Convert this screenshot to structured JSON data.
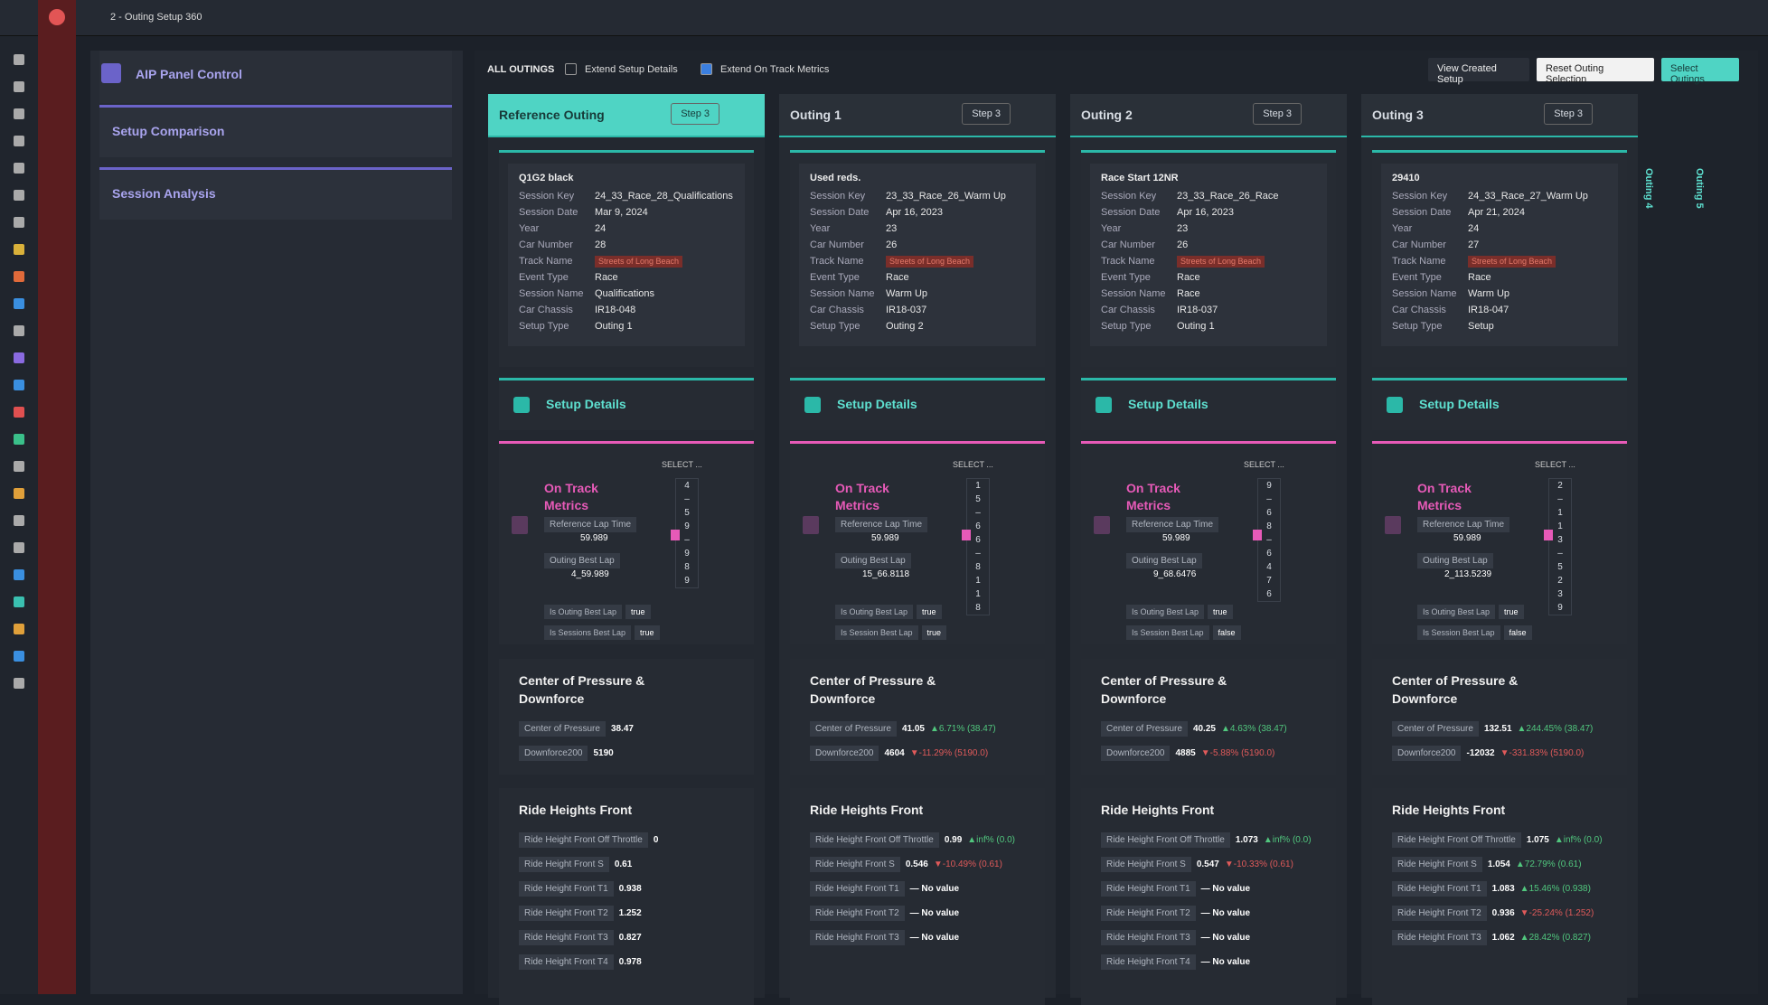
{
  "app": {
    "title": "2 - Outing Setup 360"
  },
  "left_panel": {
    "items": [
      "AIP Panel Control",
      "Setup Comparison",
      "Session Analysis"
    ]
  },
  "toolbar": {
    "label": "ALL OUTINGS",
    "checkboxes": [
      {
        "label": "Extend Setup Details",
        "checked": false
      },
      {
        "label": "Extend On Track Metrics",
        "checked": true
      }
    ],
    "buttons": [
      "View Created Setup",
      "Reset Outing Selection",
      "Select Outings"
    ]
  },
  "collapsed": [
    "Outing 4",
    "Outing 5"
  ],
  "outings": [
    {
      "title": "Reference Outing",
      "step": "Step 3",
      "info_title": "Q1G2 black",
      "fields": [
        {
          "label": "Session Key",
          "value": "24_33_Race_28_Qualifications"
        },
        {
          "label": "Session Date",
          "value": "Mar 9, 2024"
        },
        {
          "label": "Year",
          "value": "24"
        },
        {
          "label": "Car Number",
          "value": "28"
        },
        {
          "label": "Track Name",
          "value": "Streets of Long Beach"
        },
        {
          "label": "Event Type",
          "value": "Race"
        },
        {
          "label": "Session Name",
          "value": "Qualifications"
        },
        {
          "label": "Car Chassis",
          "value": "IR18-048"
        },
        {
          "label": "Setup Type",
          "value": "Outing 1"
        }
      ],
      "setup_title": "Setup Details",
      "metrics": {
        "title": "On Track Metrics",
        "select_label": "SELECT ...",
        "ref_label": "Reference Lap Time",
        "ref_value": "59.989",
        "best_label": "Outing Best Lap",
        "best_value": "4_59.989",
        "digits": [
          "4",
          "–",
          "5",
          "9",
          "–",
          "9",
          "8",
          "9"
        ],
        "flags": [
          {
            "label": "Is Outing Best Lap",
            "value": "true"
          },
          {
            "label": "Is Sessions Best Lap",
            "value": "true"
          }
        ]
      },
      "cop": {
        "title": "Center of Pressure & Downforce",
        "rows": [
          {
            "label": "Center of Pressure",
            "value": "38.47"
          },
          {
            "label": "Downforce200",
            "value": "5190"
          }
        ]
      },
      "ride": {
        "title": "Ride Heights Front",
        "rows": [
          {
            "label": "Ride Height Front Off Throttle",
            "value": "0"
          },
          {
            "label": "Ride Height Front S",
            "value": "0.61"
          },
          {
            "label": "Ride Height Front T1",
            "value": "0.938"
          },
          {
            "label": "Ride Height Front T2",
            "value": "1.252"
          },
          {
            "label": "Ride Height Front T3",
            "value": "0.827"
          },
          {
            "label": "Ride Height Front T4",
            "value": "0.978"
          }
        ]
      }
    },
    {
      "title": "Outing 1",
      "step": "Step 3",
      "info_title": "Used reds.",
      "fields": [
        {
          "label": "Session Key",
          "value": "23_33_Race_26_Warm Up"
        },
        {
          "label": "Session Date",
          "value": "Apr 16, 2023"
        },
        {
          "label": "Year",
          "value": "23"
        },
        {
          "label": "Car Number",
          "value": "26"
        },
        {
          "label": "Track Name",
          "value": "Streets of Long Beach"
        },
        {
          "label": "Event Type",
          "value": "Race"
        },
        {
          "label": "Session Name",
          "value": "Warm Up"
        },
        {
          "label": "Car Chassis",
          "value": "IR18-037"
        },
        {
          "label": "Setup Type",
          "value": "Outing 2"
        }
      ],
      "setup_title": "Setup Details",
      "metrics": {
        "title": "On Track Metrics",
        "select_label": "SELECT ...",
        "ref_label": "Reference Lap Time",
        "ref_value": "59.989",
        "best_label": "Outing Best Lap",
        "best_value": "15_66.8118",
        "digits": [
          "1",
          "5",
          "–",
          "6",
          "6",
          "–",
          "8",
          "1",
          "1",
          "8"
        ],
        "flags": [
          {
            "label": "Is Outing Best Lap",
            "value": "true"
          },
          {
            "label": "Is Session Best Lap",
            "value": "true"
          }
        ]
      },
      "cop": {
        "title": "Center of Pressure & Downforce",
        "rows": [
          {
            "label": "Center of Pressure",
            "value": "41.05",
            "delta": "▲6.71% (38.47)"
          },
          {
            "label": "Downforce200",
            "value": "4604",
            "delta": "▼-11.29% (5190.0)"
          }
        ]
      },
      "ride": {
        "title": "Ride Heights Front",
        "rows": [
          {
            "label": "Ride Height Front Off Throttle",
            "value": "0.99",
            "delta": "▲inf% (0.0)"
          },
          {
            "label": "Ride Height Front S",
            "value": "0.546",
            "delta": "▼-10.49% (0.61)"
          },
          {
            "label": "Ride Height Front T1",
            "value": "— No value"
          },
          {
            "label": "Ride Height Front T2",
            "value": "— No value"
          },
          {
            "label": "Ride Height Front T3",
            "value": "— No value"
          }
        ]
      }
    },
    {
      "title": "Outing 2",
      "step": "Step 3",
      "info_title": "Race Start 12NR",
      "fields": [
        {
          "label": "Session Key",
          "value": "23_33_Race_26_Race"
        },
        {
          "label": "Session Date",
          "value": "Apr 16, 2023"
        },
        {
          "label": "Year",
          "value": "23"
        },
        {
          "label": "Car Number",
          "value": "26"
        },
        {
          "label": "Track Name",
          "value": "Streets of Long Beach"
        },
        {
          "label": "Event Type",
          "value": "Race"
        },
        {
          "label": "Session Name",
          "value": "Race"
        },
        {
          "label": "Car Chassis",
          "value": "IR18-037"
        },
        {
          "label": "Setup Type",
          "value": "Outing 1"
        }
      ],
      "setup_title": "Setup Details",
      "metrics": {
        "title": "On Track Metrics",
        "select_label": "SELECT ...",
        "ref_label": "Reference Lap Time",
        "ref_value": "59.989",
        "best_label": "Outing Best Lap",
        "best_value": "9_68.6476",
        "digits": [
          "9",
          "–",
          "6",
          "8",
          "–",
          "6",
          "4",
          "7",
          "6"
        ],
        "flags": [
          {
            "label": "Is Outing Best Lap",
            "value": "true"
          },
          {
            "label": "Is Session Best Lap",
            "value": "false"
          }
        ]
      },
      "cop": {
        "title": "Center of Pressure & Downforce",
        "rows": [
          {
            "label": "Center of Pressure",
            "value": "40.25",
            "delta": "▲4.63% (38.47)"
          },
          {
            "label": "Downforce200",
            "value": "4885",
            "delta": "▼-5.88% (5190.0)"
          }
        ]
      },
      "ride": {
        "title": "Ride Heights Front",
        "rows": [
          {
            "label": "Ride Height Front Off Throttle",
            "value": "1.073",
            "delta": "▲inf% (0.0)"
          },
          {
            "label": "Ride Height Front S",
            "value": "0.547",
            "delta": "▼-10.33% (0.61)"
          },
          {
            "label": "Ride Height Front T1",
            "value": "— No value"
          },
          {
            "label": "Ride Height Front T2",
            "value": "— No value"
          },
          {
            "label": "Ride Height Front T3",
            "value": "— No value"
          },
          {
            "label": "Ride Height Front T4",
            "value": "— No value"
          }
        ]
      }
    },
    {
      "title": "Outing 3",
      "step": "Step 3",
      "info_title": "29410",
      "fields": [
        {
          "label": "Session Key",
          "value": "24_33_Race_27_Warm Up"
        },
        {
          "label": "Session Date",
          "value": "Apr 21, 2024"
        },
        {
          "label": "Year",
          "value": "24"
        },
        {
          "label": "Car Number",
          "value": "27"
        },
        {
          "label": "Track Name",
          "value": "Streets of Long Beach"
        },
        {
          "label": "Event Type",
          "value": "Race"
        },
        {
          "label": "Session Name",
          "value": "Warm Up"
        },
        {
          "label": "Car Chassis",
          "value": "IR18-047"
        },
        {
          "label": "Setup Type",
          "value": "Setup"
        }
      ],
      "setup_title": "Setup Details",
      "metrics": {
        "title": "On Track Metrics",
        "select_label": "SELECT ...",
        "ref_label": "Reference Lap Time",
        "ref_value": "59.989",
        "best_label": "Outing Best Lap",
        "best_value": "2_113.5239",
        "digits": [
          "2",
          "–",
          "1",
          "1",
          "3",
          "–",
          "5",
          "2",
          "3",
          "9"
        ],
        "flags": [
          {
            "label": "Is Outing Best Lap",
            "value": "true"
          },
          {
            "label": "Is Session Best Lap",
            "value": "false"
          }
        ]
      },
      "cop": {
        "title": "Center of Pressure & Downforce",
        "rows": [
          {
            "label": "Center of Pressure",
            "value": "132.51",
            "delta": "▲244.45% (38.47)"
          },
          {
            "label": "Downforce200",
            "value": "-12032",
            "delta": "▼-331.83% (5190.0)"
          }
        ]
      },
      "ride": {
        "title": "Ride Heights Front",
        "rows": [
          {
            "label": "Ride Height Front Off Throttle",
            "value": "1.075",
            "delta": "▲inf% (0.0)"
          },
          {
            "label": "Ride Height Front S",
            "value": "1.054",
            "delta": "▲72.79% (0.61)"
          },
          {
            "label": "Ride Height Front T1",
            "value": "1.083",
            "delta": "▲15.46% (0.938)"
          },
          {
            "label": "Ride Height Front T2",
            "value": "0.936",
            "delta": "▼-25.24% (1.252)"
          },
          {
            "label": "Ride Height Front T3",
            "value": "1.062",
            "delta": "▲28.42% (0.827)"
          }
        ]
      }
    }
  ]
}
